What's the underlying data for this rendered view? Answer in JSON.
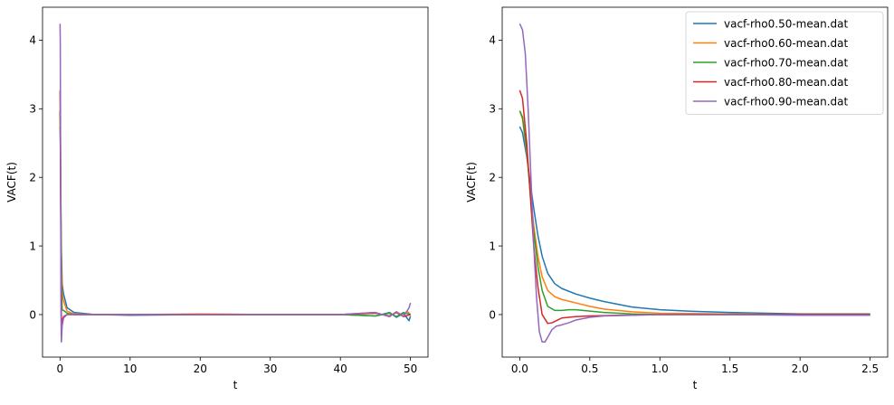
{
  "chart_data": [
    {
      "type": "line",
      "xlabel": "t",
      "ylabel": "VACF(t)",
      "xlim": [
        -2.5,
        52.5
      ],
      "ylim": [
        -0.62,
        4.48
      ],
      "xticks": [
        {
          "value": 0,
          "label": "0"
        },
        {
          "value": 10,
          "label": "10"
        },
        {
          "value": 20,
          "label": "20"
        },
        {
          "value": 30,
          "label": "30"
        },
        {
          "value": 40,
          "label": "40"
        },
        {
          "value": 50,
          "label": "50"
        }
      ],
      "yticks": [
        {
          "value": 0,
          "label": "0"
        },
        {
          "value": 1,
          "label": "1"
        },
        {
          "value": 2,
          "label": "2"
        },
        {
          "value": 3,
          "label": "3"
        },
        {
          "value": 4,
          "label": "4"
        }
      ],
      "grid": false,
      "legend": "none",
      "series": [
        {
          "color": "#1f77b4",
          "x": [
            0,
            0.05,
            0.1,
            0.2,
            0.3,
            0.5,
            1,
            2,
            5,
            10,
            20,
            30,
            40,
            45,
            47,
            48,
            49,
            49.5,
            49.8,
            50
          ],
          "y": [
            2.74,
            2.4,
            1.8,
            0.9,
            0.45,
            0.3,
            0.1,
            0.03,
            0.0,
            -0.01,
            0.0,
            0.0,
            0.0,
            -0.02,
            0.03,
            -0.04,
            0.02,
            -0.05,
            -0.09,
            -0.02
          ]
        },
        {
          "color": "#ff7f0e",
          "x": [
            0,
            0.05,
            0.1,
            0.2,
            0.3,
            0.5,
            1,
            2,
            5,
            10,
            20,
            30,
            40,
            45,
            47,
            48,
            49,
            49.5,
            50
          ],
          "y": [
            2.97,
            2.5,
            1.7,
            0.7,
            0.3,
            0.2,
            0.05,
            0.01,
            0.0,
            0.0,
            0.01,
            0.0,
            0.0,
            0.03,
            -0.03,
            0.04,
            -0.02,
            0.05,
            0.0
          ]
        },
        {
          "color": "#2ca02c",
          "x": [
            0,
            0.05,
            0.1,
            0.2,
            0.3,
            0.5,
            1,
            2,
            5,
            10,
            20,
            30,
            40,
            45,
            47,
            48,
            49,
            50
          ],
          "y": [
            2.97,
            2.6,
            1.6,
            0.4,
            0.07,
            0.06,
            0.02,
            0.0,
            0.0,
            0.0,
            0.0,
            0.0,
            0.0,
            -0.02,
            0.02,
            -0.03,
            0.03,
            0.0
          ]
        },
        {
          "color": "#d62728",
          "x": [
            0,
            0.05,
            0.1,
            0.15,
            0.2,
            0.3,
            0.5,
            1,
            2,
            5,
            10,
            20,
            30,
            40,
            45,
            47,
            48,
            49,
            50
          ],
          "y": [
            3.27,
            2.7,
            1.5,
            0.4,
            -0.15,
            -0.08,
            -0.03,
            0.0,
            0.0,
            0.0,
            0.0,
            0.0,
            0.0,
            0.0,
            0.02,
            -0.02,
            0.03,
            -0.03,
            0.0
          ]
        },
        {
          "color": "#9467bd",
          "x": [
            0,
            0.03,
            0.06,
            0.1,
            0.14,
            0.18,
            0.22,
            0.3,
            0.5,
            1,
            2,
            5,
            10,
            20,
            30,
            40,
            45,
            47,
            48,
            49,
            49.5,
            49.8,
            50
          ],
          "y": [
            4.24,
            4.0,
            3.0,
            1.4,
            0.0,
            -0.4,
            -0.35,
            -0.17,
            -0.05,
            0.0,
            0.0,
            0.0,
            0.0,
            0.0,
            0.0,
            0.0,
            0.03,
            -0.03,
            0.04,
            -0.03,
            0.05,
            0.1,
            0.17
          ]
        }
      ]
    },
    {
      "type": "line",
      "xlabel": "t",
      "ylabel": "VACF(t)",
      "xlim": [
        -0.125,
        2.625
      ],
      "ylim": [
        -0.62,
        4.48
      ],
      "xticks": [
        {
          "value": 0,
          "label": "0.0"
        },
        {
          "value": 0.5,
          "label": "0.5"
        },
        {
          "value": 1,
          "label": "1.0"
        },
        {
          "value": 1.5,
          "label": "1.5"
        },
        {
          "value": 2,
          "label": "2.0"
        },
        {
          "value": 2.5,
          "label": "2.5"
        }
      ],
      "yticks": [
        {
          "value": 0,
          "label": "0"
        },
        {
          "value": 1,
          "label": "1"
        },
        {
          "value": 2,
          "label": "2"
        },
        {
          "value": 3,
          "label": "3"
        },
        {
          "value": 4,
          "label": "4"
        }
      ],
      "grid": false,
      "legend": "top-right",
      "series": [
        {
          "name": "vacf-rho0.50-mean.dat",
          "color": "#1f77b4",
          "x": [
            0,
            0.02,
            0.05,
            0.08,
            0.1,
            0.13,
            0.16,
            0.2,
            0.25,
            0.3,
            0.4,
            0.5,
            0.6,
            0.8,
            1.0,
            1.2,
            1.5,
            2.0,
            2.5
          ],
          "y": [
            2.74,
            2.65,
            2.3,
            1.85,
            1.55,
            1.15,
            0.85,
            0.6,
            0.45,
            0.38,
            0.3,
            0.24,
            0.19,
            0.11,
            0.07,
            0.05,
            0.03,
            0.01,
            0.01
          ]
        },
        {
          "name": "vacf-rho0.60-mean.dat",
          "color": "#ff7f0e",
          "x": [
            0,
            0.02,
            0.05,
            0.08,
            0.1,
            0.13,
            0.16,
            0.2,
            0.25,
            0.3,
            0.4,
            0.5,
            0.6,
            0.8,
            1.0,
            1.5,
            2.0,
            2.5
          ],
          "y": [
            2.97,
            2.85,
            2.35,
            1.7,
            1.3,
            0.85,
            0.55,
            0.35,
            0.26,
            0.22,
            0.17,
            0.12,
            0.08,
            0.04,
            0.02,
            0.01,
            0.0,
            0.0
          ]
        },
        {
          "name": "vacf-rho0.70-mean.dat",
          "color": "#2ca02c",
          "x": [
            0,
            0.02,
            0.05,
            0.08,
            0.1,
            0.13,
            0.16,
            0.2,
            0.25,
            0.3,
            0.35,
            0.4,
            0.5,
            0.6,
            0.8,
            1.0,
            1.5,
            2.0,
            2.5
          ],
          "y": [
            2.97,
            2.88,
            2.4,
            1.65,
            1.2,
            0.7,
            0.35,
            0.12,
            0.06,
            0.06,
            0.07,
            0.07,
            0.05,
            0.03,
            0.01,
            0.0,
            0.0,
            0.0,
            0.0
          ]
        },
        {
          "name": "vacf-rho0.80-mean.dat",
          "color": "#d62728",
          "x": [
            0,
            0.02,
            0.05,
            0.08,
            0.1,
            0.13,
            0.16,
            0.2,
            0.23,
            0.27,
            0.3,
            0.4,
            0.5,
            0.7,
            1.0,
            1.5,
            2.0,
            2.5
          ],
          "y": [
            3.27,
            3.15,
            2.5,
            1.6,
            1.0,
            0.4,
            0.0,
            -0.13,
            -0.12,
            -0.08,
            -0.05,
            -0.03,
            -0.02,
            -0.01,
            0.0,
            0.0,
            0.0,
            0.0
          ]
        },
        {
          "name": "vacf-rho0.90-mean.dat",
          "color": "#9467bd",
          "x": [
            0,
            0.02,
            0.04,
            0.06,
            0.08,
            0.1,
            0.12,
            0.14,
            0.16,
            0.18,
            0.2,
            0.23,
            0.26,
            0.3,
            0.35,
            0.4,
            0.5,
            0.6,
            0.8,
            1.0,
            1.5,
            2.0,
            2.5
          ],
          "y": [
            4.24,
            4.15,
            3.8,
            3.0,
            2.0,
            1.0,
            0.25,
            -0.25,
            -0.4,
            -0.4,
            -0.33,
            -0.22,
            -0.17,
            -0.15,
            -0.12,
            -0.08,
            -0.04,
            -0.02,
            -0.01,
            0.0,
            0.0,
            -0.01,
            -0.01
          ]
        }
      ]
    }
  ]
}
